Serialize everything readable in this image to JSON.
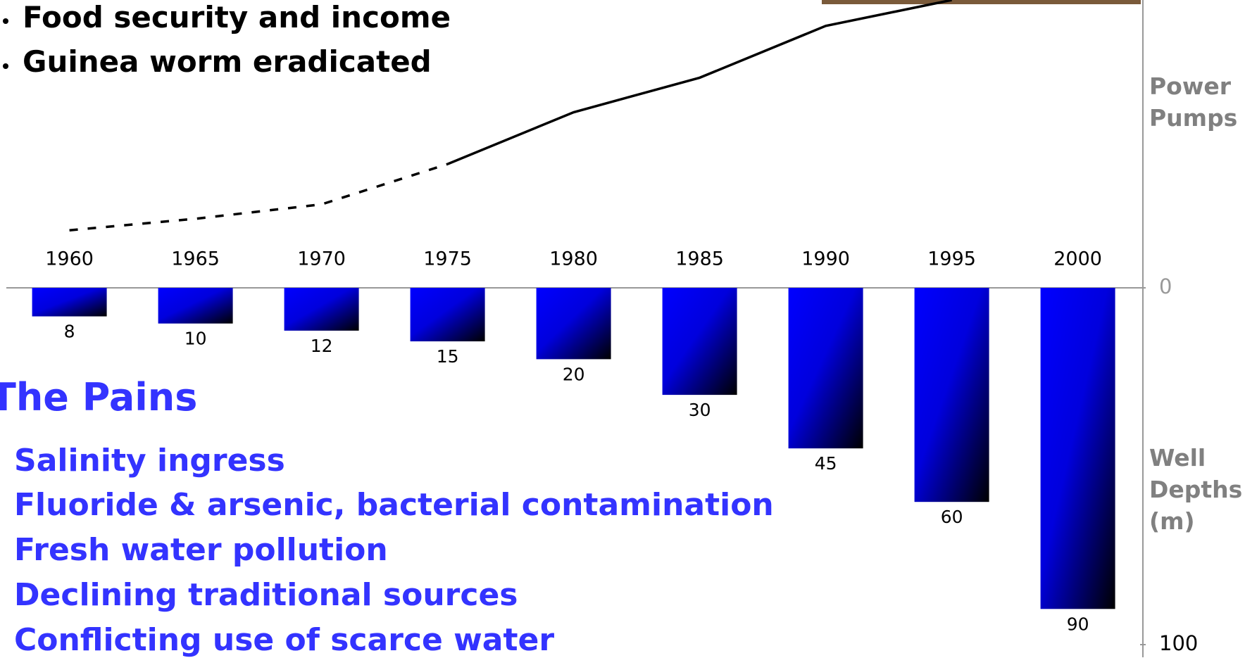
{
  "bullets": [
    "Food security and income",
    "Guinea worm eradicated"
  ],
  "pains": {
    "title": "The Pains",
    "items": [
      "Salinity ingress",
      "Fluoride & arsenic, bacterial contamination",
      "Fresh water pollution",
      "Declining traditional sources",
      "Conflicting use of scarce water"
    ]
  },
  "chart_data": {
    "type": "bar",
    "categories": [
      "1960",
      "1965",
      "1970",
      "1975",
      "1980",
      "1985",
      "1990",
      "1995",
      "2000"
    ],
    "series": [
      {
        "values": [
          8,
          10,
          12,
          15,
          20,
          30,
          45,
          60,
          90
        ],
        "color": "#0000ff"
      },
      {
        "type": "line",
        "axis": "y2",
        "values": [
          20,
          24,
          29,
          43,
          61,
          73,
          91,
          100,
          null
        ],
        "color": "#000000",
        "dashed_through": 3
      }
    ],
    "ylim": [
      0,
      100
    ],
    "yticks": [
      0,
      100
    ],
    "y_reversed": true,
    "y2lim": [
      0,
      100
    ],
    "y_label": "Well Depths (m)",
    "y2_label": "Power Pumps"
  }
}
